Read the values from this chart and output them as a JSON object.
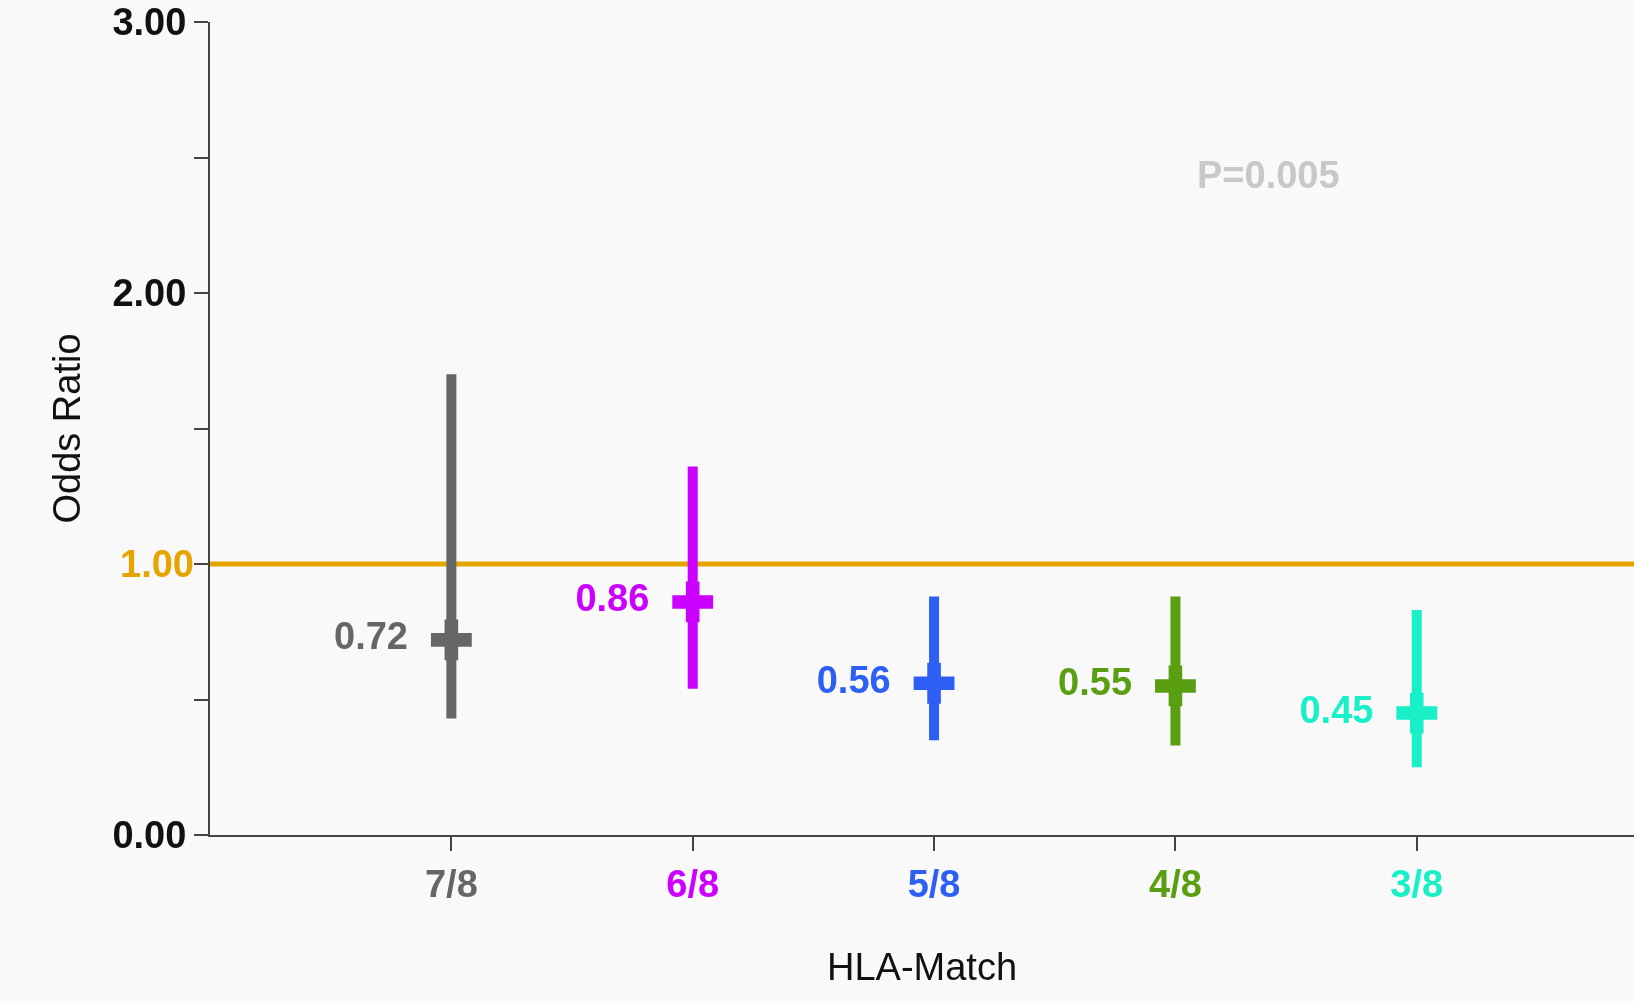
{
  "chart_data": {
    "type": "scatter",
    "xlabel": "HLA-Match",
    "ylabel": "Odds Ratio",
    "categories": [
      "7/8",
      "6/8",
      "5/8",
      "4/8",
      "3/8"
    ],
    "values": [
      0.72,
      0.86,
      0.56,
      0.55,
      0.45
    ],
    "errors": [
      [
        0.43,
        1.7
      ],
      [
        0.54,
        1.36
      ],
      [
        0.35,
        0.88
      ],
      [
        0.33,
        0.88
      ],
      [
        0.25,
        0.83
      ]
    ],
    "colors": [
      "#666666",
      "#cc00ff",
      "#2d5ff5",
      "#5a9e12",
      "#19f0c8"
    ],
    "data_labels": true,
    "marker": "cross",
    "grid": false,
    "ylim": [
      0,
      3
    ],
    "yticks": [
      {
        "value": 0,
        "label": "0.00"
      },
      {
        "value": 0.5,
        "label": null
      },
      {
        "value": 1,
        "label": null
      },
      {
        "value": 1.5,
        "label": null
      },
      {
        "value": 2,
        "label": "2.00"
      },
      {
        "value": 2.5,
        "label": null
      },
      {
        "value": 3,
        "label": "3.00"
      }
    ],
    "ref_lines": [
      {
        "axis": "y",
        "value": 1,
        "label": "1.00",
        "color": "#e6a400"
      }
    ],
    "annotations": [
      "P=0.005"
    ]
  }
}
